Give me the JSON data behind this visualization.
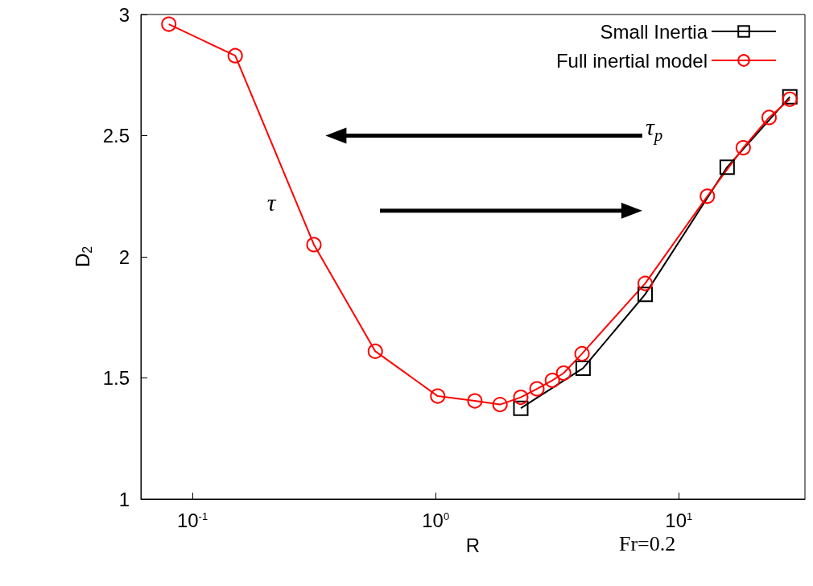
{
  "chart_data": {
    "type": "line",
    "xlabel": "R",
    "ylabel": "D$_{2}$",
    "log": "x",
    "xlim": [
      0.0614,
      33
    ],
    "ylim": [
      1,
      3
    ],
    "xticks": [
      {
        "value": 0.1,
        "label": "10$^{-1}$"
      },
      {
        "value": 1,
        "label": "10$^{0}$"
      },
      {
        "value": 10,
        "label": "10$^{1}$"
      }
    ],
    "yticks": [
      1,
      {
        "value": 1.5,
        "label": "1.5"
      },
      2,
      {
        "value": 2.5,
        "label": "2.5"
      },
      3
    ],
    "grid": false,
    "legend": "top right",
    "line_style": "solid",
    "series": [
      {
        "name": "Small Inertia",
        "color": "#000000",
        "marker": "square",
        "x": [
          2.24,
          4.04,
          7.27,
          15.8,
          28.6
        ],
        "values": [
          1.375,
          1.54,
          1.845,
          2.37,
          2.66
        ]
      },
      {
        "name": "Full inertial model",
        "color": "#ff0000",
        "marker": "circle",
        "x": [
          0.08,
          0.15,
          0.316,
          0.565,
          1.02,
          1.45,
          1.84,
          2.24,
          2.61,
          3.02,
          3.36,
          4.0,
          7.27,
          13.1,
          18.4,
          23.5,
          28.6
        ],
        "values": [
          2.96,
          2.83,
          2.05,
          1.61,
          1.425,
          1.405,
          1.39,
          1.42,
          1.455,
          1.49,
          1.52,
          1.6,
          1.89,
          2.25,
          2.45,
          2.575,
          2.65
        ]
      }
    ],
    "annotations": [
      "τ$_{p}$",
      "τ",
      "Fr=0.2"
    ]
  }
}
